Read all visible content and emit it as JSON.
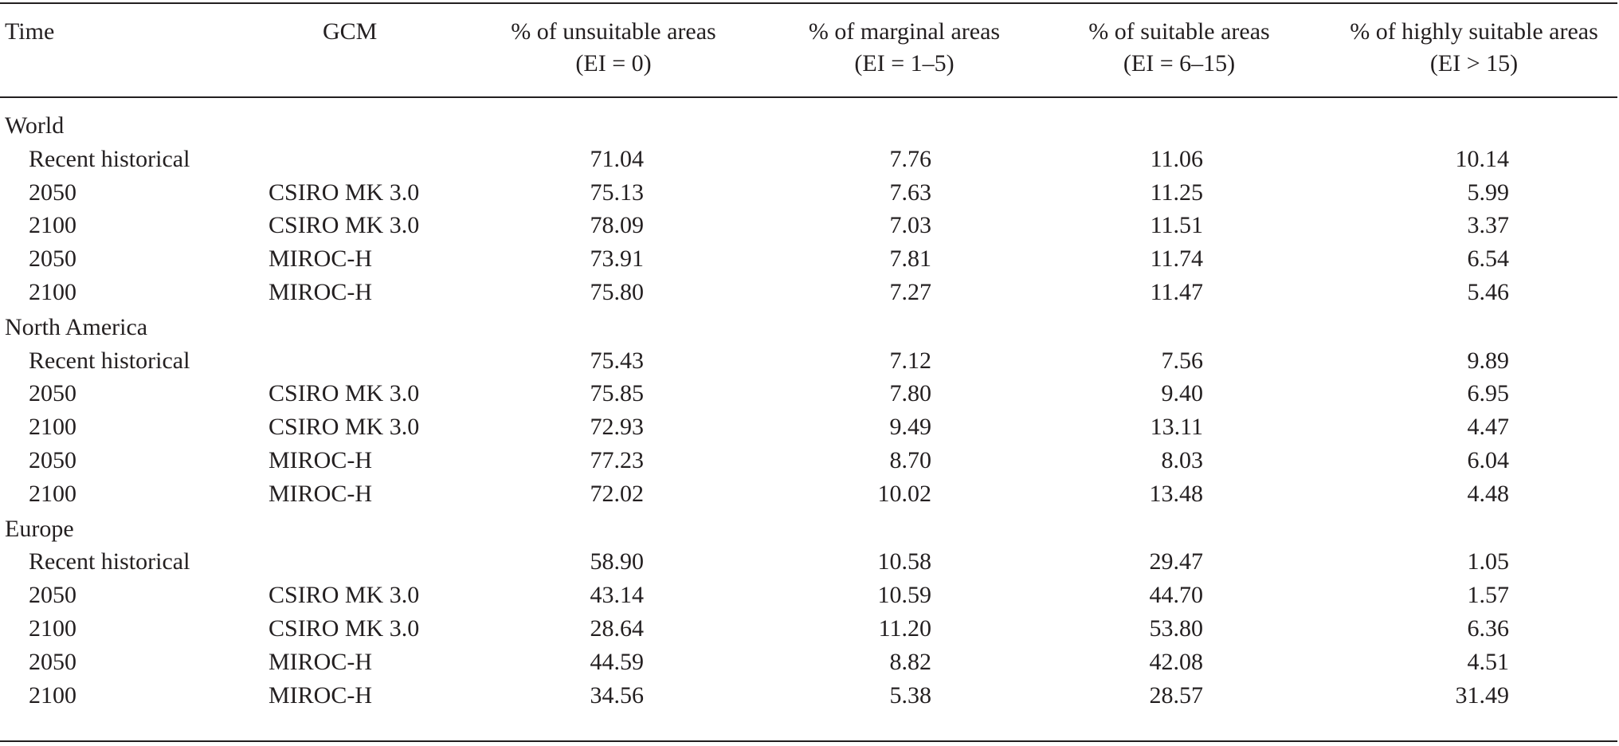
{
  "table": {
    "headers": {
      "time": "Time",
      "gcm": "GCM",
      "unsuitable": [
        "% of unsuitable areas",
        "(EI = 0)"
      ],
      "marginal": [
        "% of marginal areas",
        "(EI = 1–5)"
      ],
      "suitable": [
        "% of suitable areas",
        "(EI = 6–15)"
      ],
      "highly": [
        "% of highly suitable areas",
        "(EI > 15)"
      ]
    },
    "sections": [
      {
        "region": "World",
        "rows": [
          {
            "time": "Recent historical",
            "gcm": "",
            "unsuitable": "71.04",
            "marginal": "7.76",
            "suitable": "11.06",
            "highly": "10.14"
          },
          {
            "time": "2050",
            "gcm": "CSIRO MK 3.0",
            "unsuitable": "75.13",
            "marginal": "7.63",
            "suitable": "11.25",
            "highly": "5.99"
          },
          {
            "time": "2100",
            "gcm": "CSIRO MK 3.0",
            "unsuitable": "78.09",
            "marginal": "7.03",
            "suitable": "11.51",
            "highly": "3.37"
          },
          {
            "time": "2050",
            "gcm": "MIROC-H",
            "unsuitable": "73.91",
            "marginal": "7.81",
            "suitable": "11.74",
            "highly": "6.54"
          },
          {
            "time": "2100",
            "gcm": "MIROC-H",
            "unsuitable": "75.80",
            "marginal": "7.27",
            "suitable": "11.47",
            "highly": "5.46"
          }
        ]
      },
      {
        "region": "North America",
        "rows": [
          {
            "time": "Recent historical",
            "gcm": "",
            "unsuitable": "75.43",
            "marginal": "7.12",
            "suitable": "7.56",
            "highly": "9.89"
          },
          {
            "time": "2050",
            "gcm": "CSIRO MK 3.0",
            "unsuitable": "75.85",
            "marginal": "7.80",
            "suitable": "9.40",
            "highly": "6.95"
          },
          {
            "time": "2100",
            "gcm": "CSIRO MK 3.0",
            "unsuitable": "72.93",
            "marginal": "9.49",
            "suitable": "13.11",
            "highly": "4.47"
          },
          {
            "time": "2050",
            "gcm": "MIROC-H",
            "unsuitable": "77.23",
            "marginal": "8.70",
            "suitable": "8.03",
            "highly": "6.04"
          },
          {
            "time": "2100",
            "gcm": "MIROC-H",
            "unsuitable": "72.02",
            "marginal": "10.02",
            "suitable": "13.48",
            "highly": "4.48"
          }
        ]
      },
      {
        "region": "Europe",
        "rows": [
          {
            "time": "Recent historical",
            "gcm": "",
            "unsuitable": "58.90",
            "marginal": "10.58",
            "suitable": "29.47",
            "highly": "1.05"
          },
          {
            "time": "2050",
            "gcm": "CSIRO MK 3.0",
            "unsuitable": "43.14",
            "marginal": "10.59",
            "suitable": "44.70",
            "highly": "1.57"
          },
          {
            "time": "2100",
            "gcm": "CSIRO MK 3.0",
            "unsuitable": "28.64",
            "marginal": "11.20",
            "suitable": "53.80",
            "highly": "6.36"
          },
          {
            "time": "2050",
            "gcm": "MIROC-H",
            "unsuitable": "44.59",
            "marginal": "8.82",
            "suitable": "42.08",
            "highly": "4.51"
          },
          {
            "time": "2100",
            "gcm": "MIROC-H",
            "unsuitable": "34.56",
            "marginal": "5.38",
            "suitable": "28.57",
            "highly": "31.49"
          }
        ]
      }
    ]
  }
}
